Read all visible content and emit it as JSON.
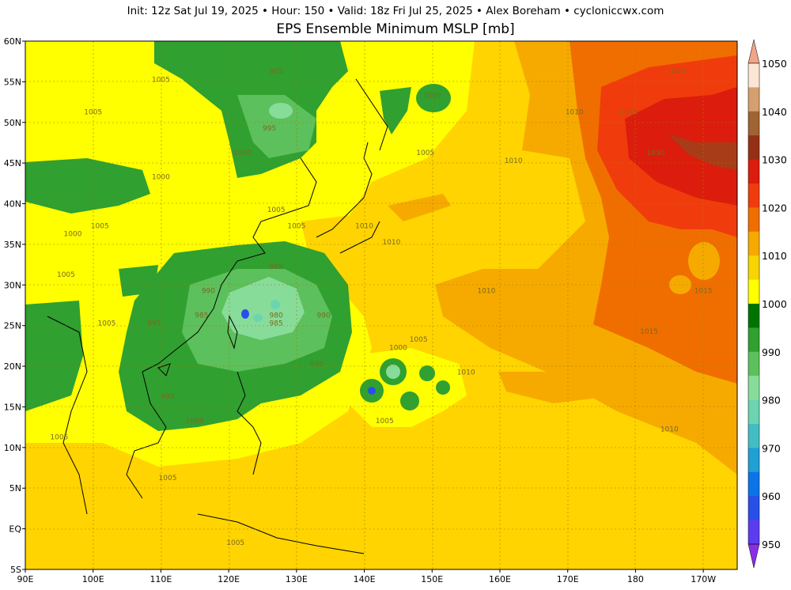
{
  "header": {
    "info_line": "Init: 12z Sat Jul 19, 2025  •  Hour: 150  •  Valid: 18z Fri Jul 25, 2025  •  Alex Boreham  •  cycloniccwx.com",
    "title": "EPS Ensemble Minimum MSLP [mb]"
  },
  "map": {
    "lon_ticks": [
      "90E",
      "100E",
      "110E",
      "120E",
      "130E",
      "140E",
      "150E",
      "160E",
      "170E",
      "180",
      "170W"
    ],
    "lat_ticks": [
      "60N",
      "55N",
      "50N",
      "45N",
      "40N",
      "35N",
      "30N",
      "25N",
      "20N",
      "15N",
      "10N",
      "5N",
      "EQ",
      "5S"
    ],
    "contour_labels": [
      {
        "text": "1005",
        "lon": 110,
        "lat": 55
      },
      {
        "text": "1005",
        "lon": 100,
        "lat": 51
      },
      {
        "text": "985",
        "lon": 127,
        "lat": 56
      },
      {
        "text": "995",
        "lon": 126,
        "lat": 49
      },
      {
        "text": "1000",
        "lon": 122,
        "lat": 46
      },
      {
        "text": "1000",
        "lon": 110,
        "lat": 43
      },
      {
        "text": "1005",
        "lon": 127,
        "lat": 39
      },
      {
        "text": "1005",
        "lon": 130,
        "lat": 37
      },
      {
        "text": "1005",
        "lon": 101,
        "lat": 37
      },
      {
        "text": "1000",
        "lon": 97,
        "lat": 36
      },
      {
        "text": "1005",
        "lon": 96,
        "lat": 31
      },
      {
        "text": "985",
        "lon": 127,
        "lat": 32
      },
      {
        "text": "990",
        "lon": 117,
        "lat": 29
      },
      {
        "text": "985",
        "lon": 116,
        "lat": 26
      },
      {
        "text": "980",
        "lon": 127,
        "lat": 26
      },
      {
        "text": "985",
        "lon": 127,
        "lat": 25
      },
      {
        "text": "990",
        "lon": 134,
        "lat": 26
      },
      {
        "text": "1005",
        "lon": 102,
        "lat": 25
      },
      {
        "text": "995",
        "lon": 109,
        "lat": 25
      },
      {
        "text": "995",
        "lon": 133,
        "lat": 20
      },
      {
        "text": "1000",
        "lon": 145,
        "lat": 22
      },
      {
        "text": "1005",
        "lon": 148,
        "lat": 23
      },
      {
        "text": "1005",
        "lon": 143,
        "lat": 13
      },
      {
        "text": "995",
        "lon": 111,
        "lat": 16
      },
      {
        "text": "1000",
        "lon": 115,
        "lat": 13
      },
      {
        "text": "1005",
        "lon": 95,
        "lat": 11
      },
      {
        "text": "1005",
        "lon": 111,
        "lat": 6
      },
      {
        "text": "1000",
        "lon": 150,
        "lat": 53
      },
      {
        "text": "1005",
        "lon": 149,
        "lat": 46
      },
      {
        "text": "1010",
        "lon": 140,
        "lat": 37
      },
      {
        "text": "1010",
        "lon": 144,
        "lat": 35
      },
      {
        "text": "1010",
        "lon": 162,
        "lat": 45
      },
      {
        "text": "1010",
        "lon": 171,
        "lat": 51
      },
      {
        "text": "1010",
        "lon": 158,
        "lat": 29
      },
      {
        "text": "1010",
        "lon": 155,
        "lat": 19
      },
      {
        "text": "1010",
        "lon": 185,
        "lat": 12
      },
      {
        "text": "1015",
        "lon": 182,
        "lat": 24
      },
      {
        "text": "1015",
        "lon": 190,
        "lat": 29
      },
      {
        "text": "1015",
        "lon": 179,
        "lat": 51
      },
      {
        "text": "1020",
        "lon": 186,
        "lat": 56
      },
      {
        "text": "1030",
        "lon": 183,
        "lat": 46
      },
      {
        "text": "1005",
        "lon": 121,
        "lat": -2
      }
    ]
  },
  "colorbar": {
    "labels": [
      "1050",
      "1040",
      "1030",
      "1020",
      "1010",
      "1000",
      "990",
      "980",
      "970",
      "960",
      "950"
    ],
    "colors": [
      "#f0a488",
      "#fbe6d4",
      "#d4a070",
      "#a06432",
      "#963014",
      "#dc1c0c",
      "#f03c0c",
      "#f06e00",
      "#f6aa00",
      "#f8d400",
      "#ffff00",
      "#007400",
      "#30a030",
      "#5cc05c",
      "#88dc9a",
      "#6cd4b0",
      "#44bcc4",
      "#20a0d4",
      "#0c74e8",
      "#2850e8",
      "#5c3cf0",
      "#8c2ce8"
    ]
  }
}
